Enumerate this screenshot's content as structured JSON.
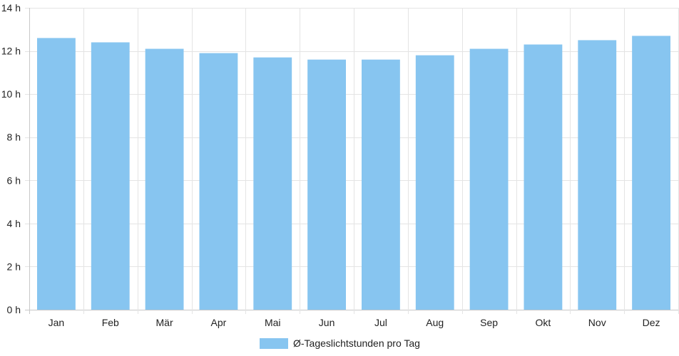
{
  "chart_data": {
    "type": "bar",
    "categories": [
      "Jan",
      "Feb",
      "Mär",
      "Apr",
      "Mai",
      "Jun",
      "Jul",
      "Aug",
      "Sep",
      "Okt",
      "Nov",
      "Dez"
    ],
    "series": [
      {
        "name": "Ø-Tageslichtstunden pro Tag",
        "values": [
          12.6,
          12.4,
          12.1,
          11.9,
          11.7,
          11.6,
          11.6,
          11.8,
          12.1,
          12.3,
          12.5,
          12.7
        ],
        "color": "#87c5f0"
      }
    ],
    "ylim": [
      0,
      14
    ],
    "yticks": [
      {
        "value": 0,
        "label": "0 h"
      },
      {
        "value": 2,
        "label": "2 h"
      },
      {
        "value": 4,
        "label": "4 h"
      },
      {
        "value": 6,
        "label": "6 h"
      },
      {
        "value": 8,
        "label": "8 h"
      },
      {
        "value": 10,
        "label": "10 h"
      },
      {
        "value": 12,
        "label": "12 h"
      },
      {
        "value": 14,
        "label": "14 h"
      }
    ],
    "grid": true,
    "legend_position": "bottom"
  }
}
